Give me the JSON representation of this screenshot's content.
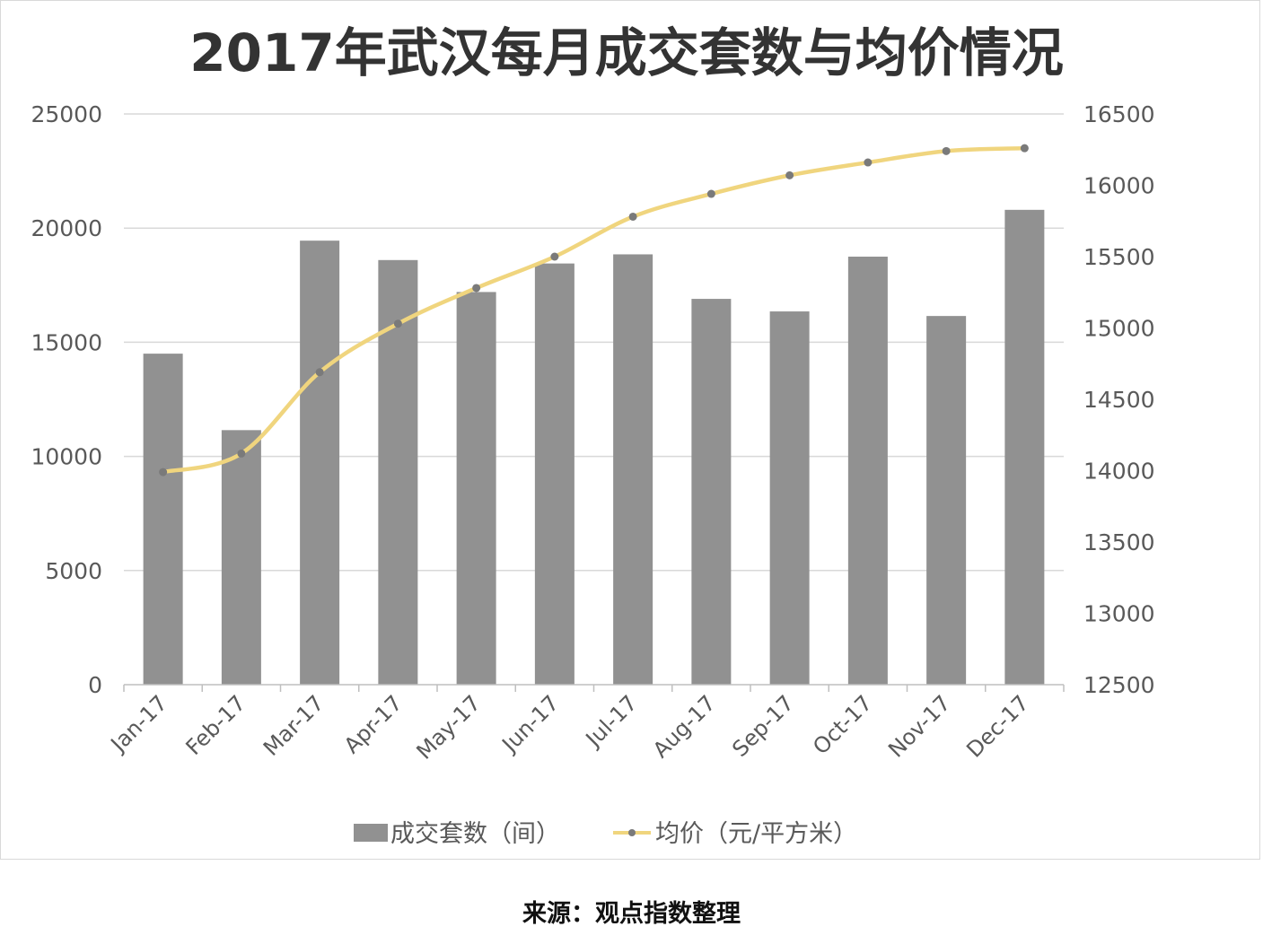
{
  "chart_data": {
    "type": "bar",
    "title": "2017年武汉每月成交套数与均价情况",
    "categories": [
      "Jan-17",
      "Feb-17",
      "Mar-17",
      "Apr-17",
      "May-17",
      "Jun-17",
      "Jul-17",
      "Aug-17",
      "Sep-17",
      "Oct-17",
      "Nov-17",
      "Dec-17"
    ],
    "series": [
      {
        "name": "成交套数（间）",
        "type": "bar",
        "axis": "left",
        "color": "#919191",
        "values": [
          14500,
          11150,
          19450,
          18600,
          17200,
          18450,
          18850,
          16900,
          16350,
          18750,
          16150,
          20800
        ]
      },
      {
        "name": "均价（元/平方米）",
        "type": "line",
        "axis": "right",
        "color": "#f0d57e",
        "marker_color": "#7a7a7a",
        "values": [
          13990,
          14120,
          14690,
          15030,
          15280,
          15500,
          15780,
          15940,
          16070,
          16160,
          16240,
          16260
        ]
      }
    ],
    "y_left": {
      "min": 0,
      "max": 25000,
      "ticks": [
        "0",
        "5000",
        "10000",
        "15000",
        "20000",
        "25000"
      ]
    },
    "y_right": {
      "min": 12500,
      "max": 16500,
      "ticks": [
        "12500",
        "13000",
        "13500",
        "14000",
        "14500",
        "15000",
        "15500",
        "16000",
        "16500"
      ]
    },
    "grid": true,
    "legend_position": "bottom"
  },
  "source_text": "来源：观点指数整理"
}
